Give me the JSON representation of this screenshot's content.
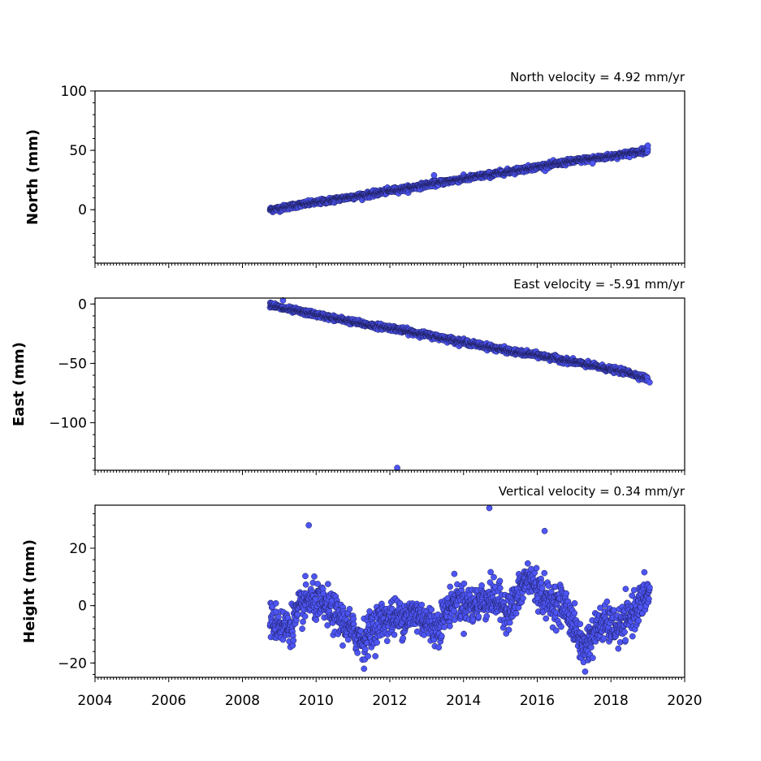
{
  "chart_data": [
    {
      "type": "scatter",
      "ylabel": "North (mm)",
      "annotation": "North velocity = 4.92 mm/yr",
      "velocity_mm_per_yr": 4.92,
      "xlim": [
        2004,
        2020
      ],
      "ylim": [
        -45,
        100
      ],
      "yticks": [
        0,
        50,
        100
      ],
      "ytick_labels": [
        "0",
        "50",
        "100"
      ],
      "show_x_tick_labels": false,
      "marker_color": "#4d55f5",
      "series": [
        {
          "x": [
            2008.75,
            2009.0,
            2009.5,
            2010.0,
            2010.5,
            2011.0,
            2011.5,
            2012.0,
            2012.5,
            2013.0,
            2013.5,
            2014.0,
            2014.5,
            2015.0,
            2015.5,
            2016.0,
            2016.5,
            2017.0,
            2017.5,
            2018.0,
            2018.5,
            2019.0
          ],
          "y": [
            0,
            1,
            4,
            6,
            8.5,
            11,
            13,
            16,
            18,
            21,
            23.5,
            26,
            28.5,
            31,
            33.5,
            36,
            38.5,
            41,
            43,
            45,
            47.5,
            50
          ]
        }
      ],
      "outliers": [
        {
          "x": 2019.0,
          "y": 54
        },
        {
          "x": 2017.5,
          "y": 39
        },
        {
          "x": 2013.2,
          "y": 29
        }
      ]
    },
    {
      "type": "scatter",
      "ylabel": "East (mm)",
      "annotation": "East velocity = -5.91 mm/yr",
      "velocity_mm_per_yr": -5.91,
      "xlim": [
        2004,
        2020
      ],
      "ylim": [
        -140,
        5
      ],
      "yticks": [
        0,
        -50,
        -100
      ],
      "ytick_labels": [
        "0",
        "−50",
        "−100"
      ],
      "show_x_tick_labels": false,
      "marker_color": "#4d55f5",
      "series": [
        {
          "x": [
            2008.75,
            2009.0,
            2009.5,
            2010.0,
            2010.5,
            2011.0,
            2011.5,
            2012.0,
            2012.5,
            2013.0,
            2013.5,
            2014.0,
            2014.5,
            2015.0,
            2015.5,
            2016.0,
            2016.5,
            2017.0,
            2017.5,
            2018.0,
            2018.5,
            2019.0
          ],
          "y": [
            0,
            -3,
            -6,
            -9,
            -12,
            -15,
            -18,
            -20,
            -23,
            -26,
            -29,
            -32,
            -35,
            -38,
            -41,
            -43,
            -46,
            -49,
            -52,
            -55,
            -58,
            -63
          ]
        }
      ],
      "outliers": [
        {
          "x": 2009.1,
          "y": 3
        },
        {
          "x": 2012.2,
          "y": -138
        },
        {
          "x": 2019.05,
          "y": -66
        }
      ]
    },
    {
      "type": "scatter",
      "ylabel": "Height (mm)",
      "annotation": "Vertical velocity = 0.34 mm/yr",
      "velocity_mm_per_yr": 0.34,
      "xlim": [
        2004,
        2020
      ],
      "ylim": [
        -25,
        35
      ],
      "yticks": [
        -20,
        0,
        20
      ],
      "ytick_labels": [
        "−20",
        "0",
        "20"
      ],
      "show_x_tick_labels": true,
      "xticks": [
        2004,
        2006,
        2008,
        2010,
        2012,
        2014,
        2016,
        2018,
        2020
      ],
      "xtick_labels": [
        "2004",
        "2006",
        "2008",
        "2010",
        "2012",
        "2014",
        "2016",
        "2018",
        "2020"
      ],
      "marker_color": "#4d55f5",
      "series": [
        {
          "x": [
            2008.75,
            2009.25,
            2009.75,
            2010.25,
            2010.75,
            2011.25,
            2011.75,
            2012.25,
            2012.75,
            2013.25,
            2013.75,
            2014.25,
            2014.75,
            2015.25,
            2015.75,
            2016.25,
            2016.75,
            2017.25,
            2017.75,
            2018.25,
            2018.75,
            2019.05
          ],
          "y": [
            -5,
            -8,
            2,
            0,
            -6,
            -12,
            -5,
            -4,
            -3,
            -8,
            2,
            0,
            3,
            -2,
            10,
            2,
            0,
            -15,
            -6,
            -8,
            0,
            5
          ]
        }
      ],
      "outliers": [
        {
          "x": 2009.8,
          "y": 28
        },
        {
          "x": 2014.7,
          "y": 34
        },
        {
          "x": 2016.2,
          "y": 26
        },
        {
          "x": 2017.3,
          "y": -23
        },
        {
          "x": 2011.3,
          "y": -22
        }
      ]
    }
  ]
}
